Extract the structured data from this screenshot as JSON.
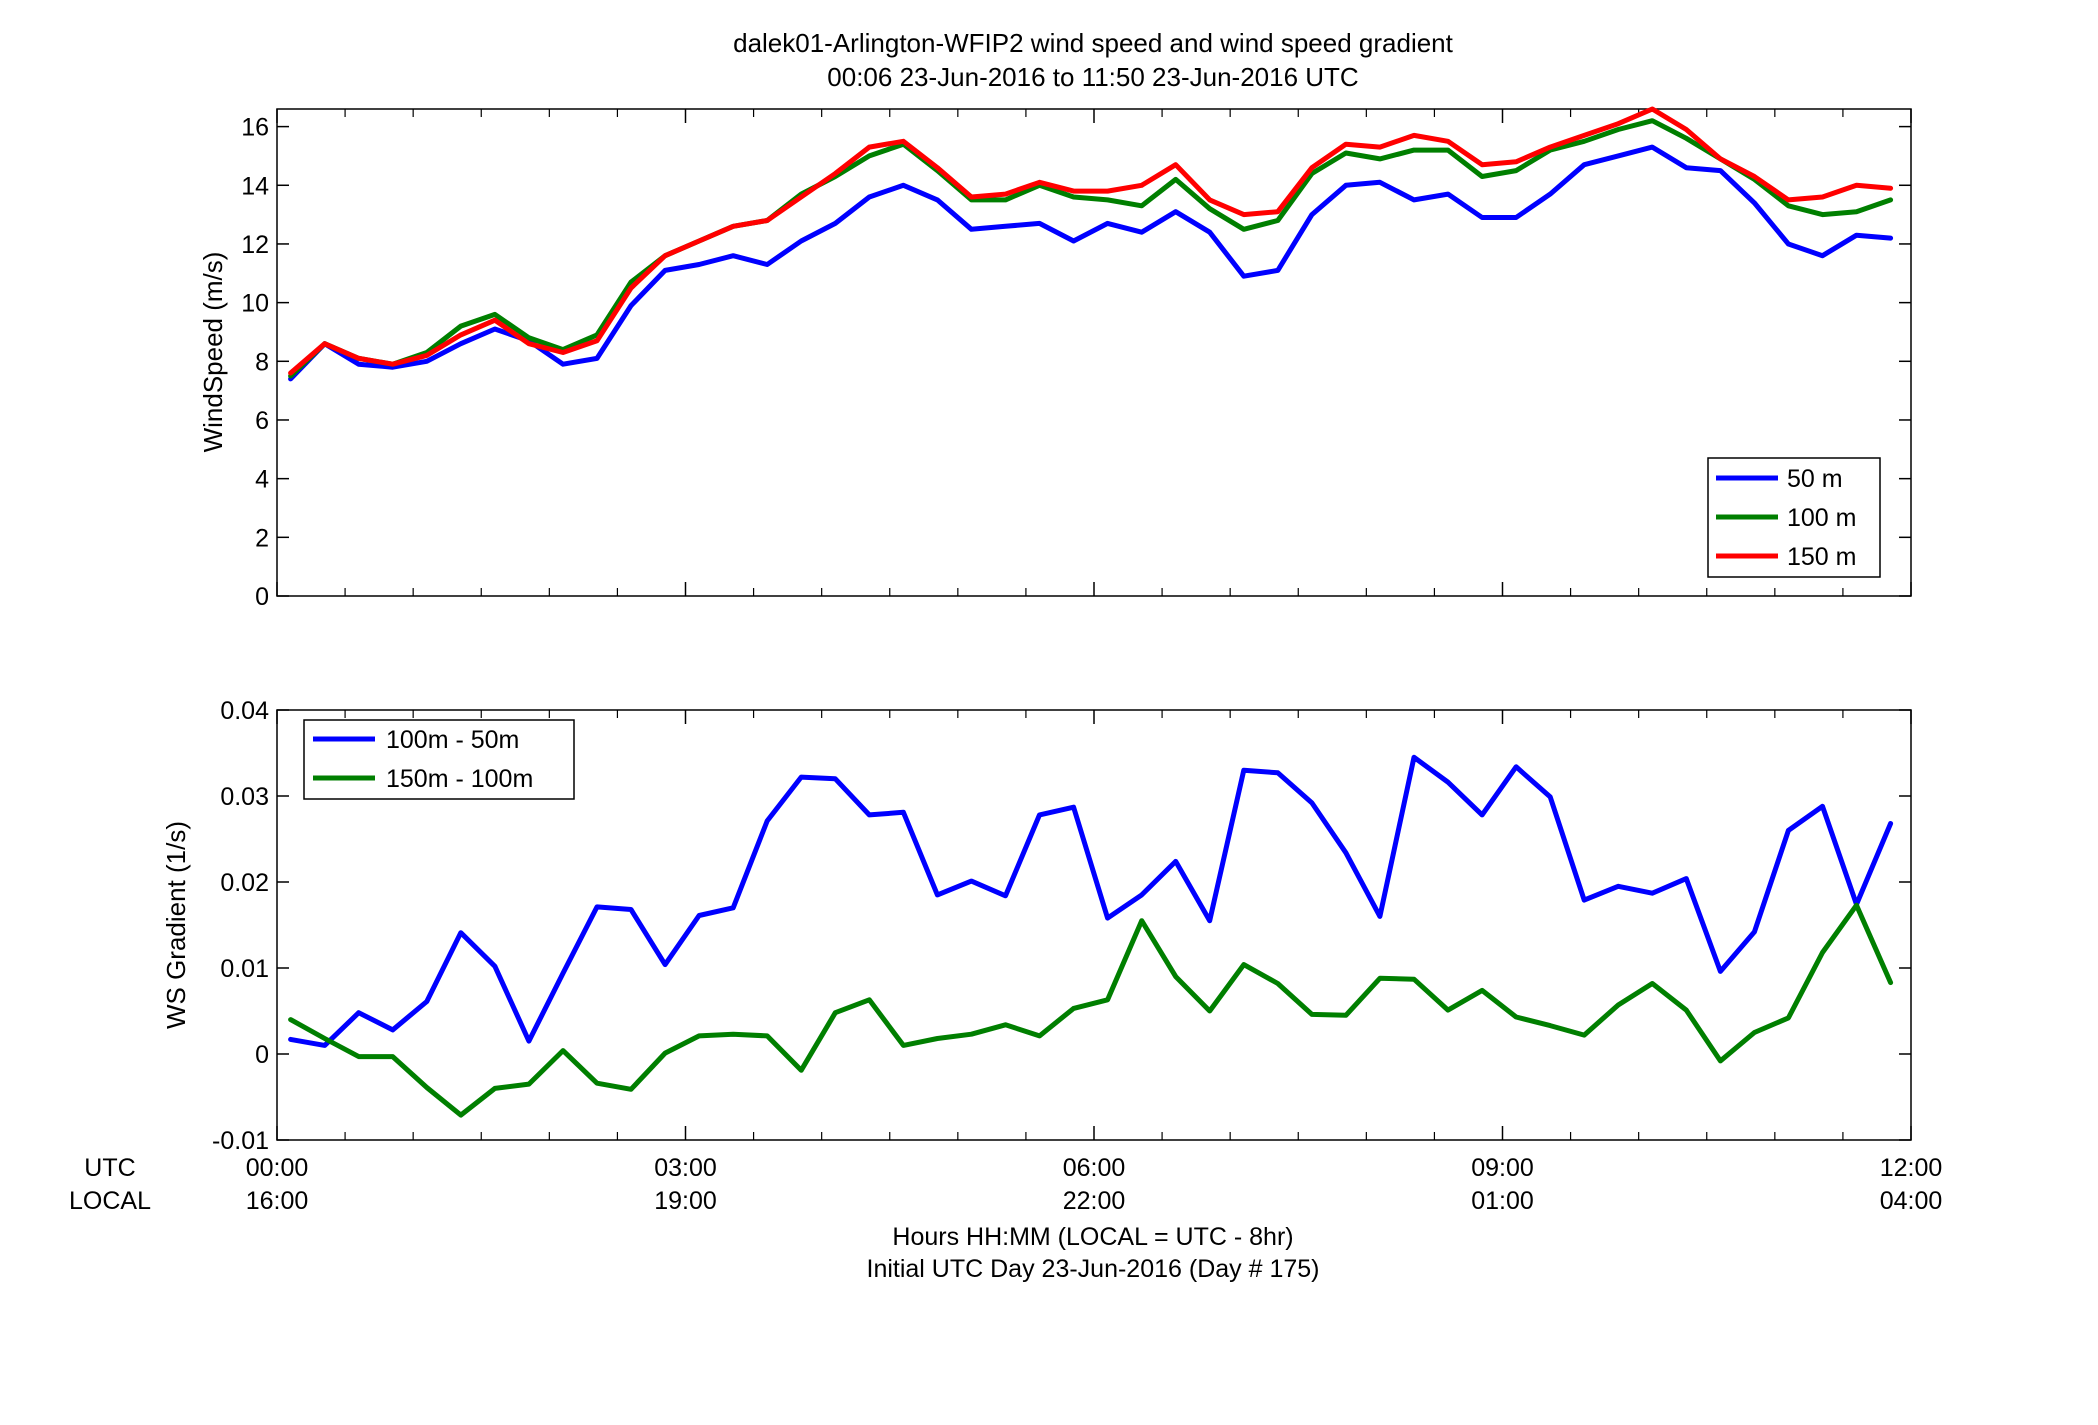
{
  "title_line1": "dalek01-Arlington-WFIP2  wind speed and wind speed gradient",
  "title_line2": "00:06 23-Jun-2016 to 11:50 23-Jun-2016  UTC",
  "xlabel_line1": "Hours HH:MM  (LOCAL = UTC - 8hr)",
  "xlabel_line2": "Initial UTC Day 23-Jun-2016 (Day # 175)",
  "row_label_utc": "UTC",
  "row_label_local": "LOCAL",
  "x_ticks": [
    {
      "utc": "00:00",
      "local": "16:00"
    },
    {
      "utc": "03:00",
      "local": "19:00"
    },
    {
      "utc": "06:00",
      "local": "22:00"
    },
    {
      "utc": "09:00",
      "local": "01:00"
    },
    {
      "utc": "12:00",
      "local": "04:00"
    }
  ],
  "chart_data": [
    {
      "type": "line",
      "ylabel": "WindSpeed (m/s)",
      "xlim": [
        0,
        12
      ],
      "ylim": [
        0,
        16.6
      ],
      "yticks": [
        "0",
        "2",
        "4",
        "6",
        "8",
        "10",
        "12",
        "14",
        "16"
      ],
      "legend_position": "bottom-right",
      "x": [
        0.1,
        0.35,
        0.6,
        0.85,
        1.1,
        1.35,
        1.6,
        1.85,
        2.1,
        2.35,
        2.6,
        2.85,
        3.1,
        3.35,
        3.6,
        3.85,
        4.1,
        4.35,
        4.6,
        4.85,
        5.1,
        5.35,
        5.6,
        5.85,
        6.1,
        6.35,
        6.6,
        6.85,
        7.1,
        7.35,
        7.6,
        7.85,
        8.1,
        8.35,
        8.6,
        8.85,
        9.1,
        9.35,
        9.6,
        9.85,
        10.1,
        10.35,
        10.6,
        10.85,
        11.1,
        11.35,
        11.6,
        11.85
      ],
      "series": [
        {
          "name": "50 m",
          "color": "#0000ff",
          "values": [
            7.4,
            8.6,
            7.9,
            7.8,
            8.0,
            8.6,
            9.1,
            8.7,
            7.9,
            8.1,
            9.9,
            11.1,
            11.3,
            11.6,
            11.3,
            12.1,
            12.7,
            13.6,
            14.0,
            13.5,
            12.5,
            12.6,
            12.7,
            12.1,
            12.7,
            12.4,
            13.1,
            12.4,
            10.9,
            11.1,
            13.0,
            14.0,
            14.1,
            13.5,
            13.7,
            12.9,
            12.9,
            13.7,
            14.7,
            15.0,
            15.3,
            14.6,
            14.5,
            13.4,
            12.0,
            11.6,
            12.3,
            12.2
          ]
        },
        {
          "name": "100 m",
          "color": "#007f00",
          "values": [
            7.5,
            8.6,
            8.1,
            7.9,
            8.3,
            9.2,
            9.6,
            8.8,
            8.4,
            8.9,
            10.7,
            11.6,
            12.1,
            12.6,
            12.8,
            13.7,
            14.3,
            15.0,
            15.4,
            14.5,
            13.5,
            13.5,
            14.0,
            13.6,
            13.5,
            13.3,
            14.2,
            13.2,
            12.5,
            12.8,
            14.4,
            15.1,
            14.9,
            15.2,
            15.2,
            14.3,
            14.5,
            15.2,
            15.5,
            15.9,
            16.2,
            15.6,
            14.9,
            14.2,
            13.3,
            13.0,
            13.1,
            13.5
          ]
        },
        {
          "name": "150 m",
          "color": "#ff0000",
          "values": [
            7.6,
            8.6,
            8.1,
            7.9,
            8.2,
            8.9,
            9.4,
            8.6,
            8.3,
            8.7,
            10.5,
            11.6,
            12.1,
            12.6,
            12.8,
            13.6,
            14.4,
            15.3,
            15.5,
            14.6,
            13.6,
            13.7,
            14.1,
            13.8,
            13.8,
            14.0,
            14.7,
            13.5,
            13.0,
            13.1,
            14.6,
            15.4,
            15.3,
            15.7,
            15.5,
            14.7,
            14.8,
            15.3,
            15.7,
            16.1,
            16.6,
            15.9,
            14.9,
            14.3,
            13.5,
            13.6,
            14.0,
            13.9
          ]
        }
      ]
    },
    {
      "type": "line",
      "ylabel": "WS Gradient (1/s)",
      "xlim": [
        0,
        12
      ],
      "ylim": [
        -0.01,
        0.04
      ],
      "yticks": [
        "-0.01",
        "0",
        "0.01",
        "0.02",
        "0.03",
        "0.04"
      ],
      "legend_position": "top-left",
      "x": [
        0.1,
        0.35,
        0.6,
        0.85,
        1.1,
        1.35,
        1.6,
        1.85,
        2.1,
        2.35,
        2.6,
        2.85,
        3.1,
        3.35,
        3.6,
        3.85,
        4.1,
        4.35,
        4.6,
        4.85,
        5.1,
        5.35,
        5.6,
        5.85,
        6.1,
        6.35,
        6.6,
        6.85,
        7.1,
        7.35,
        7.6,
        7.85,
        8.1,
        8.35,
        8.6,
        8.85,
        9.1,
        9.35,
        9.6,
        9.85,
        10.1,
        10.35,
        10.6,
        10.85,
        11.1,
        11.35,
        11.6,
        11.85
      ],
      "series": [
        {
          "name": "100m - 50m",
          "color": "#0000ff",
          "values": [
            0.0017,
            0.001,
            0.0048,
            0.0028,
            0.0061,
            0.0141,
            0.0102,
            0.0015,
            0.0094,
            0.0171,
            0.0168,
            0.0104,
            0.0161,
            0.017,
            0.0271,
            0.0322,
            0.032,
            0.0278,
            0.0281,
            0.0185,
            0.0201,
            0.0184,
            0.0278,
            0.0287,
            0.0158,
            0.0185,
            0.0224,
            0.0155,
            0.033,
            0.0327,
            0.0292,
            0.0234,
            0.016,
            0.0345,
            0.0316,
            0.0278,
            0.0334,
            0.0299,
            0.0179,
            0.0195,
            0.0187,
            0.0204,
            0.0096,
            0.0142,
            0.026,
            0.0288,
            0.0174,
            0.0268
          ]
        },
        {
          "name": "150m - 100m",
          "color": "#007f00",
          "values": [
            0.004,
            0.0018,
            -0.0003,
            -0.0003,
            -0.0039,
            -0.0071,
            -0.004,
            -0.0035,
            0.0004,
            -0.0034,
            -0.0041,
            0.0001,
            0.0021,
            0.0023,
            0.0021,
            -0.0019,
            0.0048,
            0.0063,
            0.001,
            0.0018,
            0.0023,
            0.0034,
            0.0021,
            0.0053,
            0.0063,
            0.0155,
            0.009,
            0.005,
            0.0104,
            0.0082,
            0.0046,
            0.0045,
            0.0088,
            0.0087,
            0.0051,
            0.0074,
            0.0043,
            0.0033,
            0.0022,
            0.0057,
            0.0082,
            0.0051,
            -0.0008,
            0.0025,
            0.0042,
            0.0118,
            0.0173,
            0.0083
          ]
        }
      ]
    }
  ]
}
